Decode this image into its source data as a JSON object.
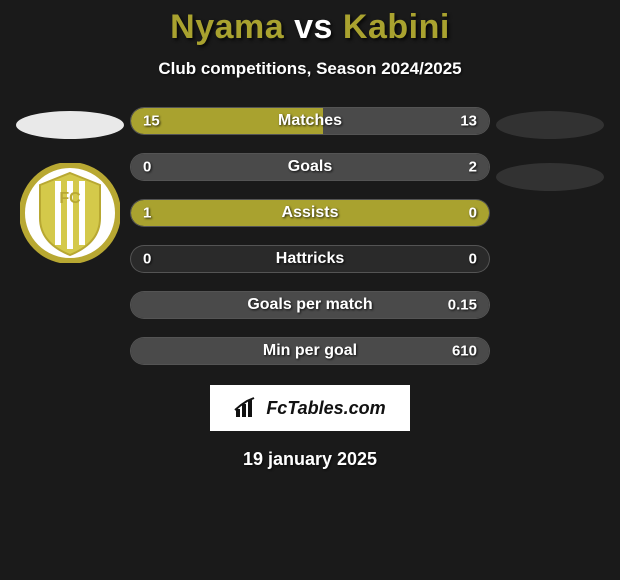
{
  "background_color": "#1a1a1a",
  "title": {
    "player1": "Nyama",
    "vs": "vs",
    "player2": "Kabini",
    "player1_color": "#a9a22f",
    "player2_color": "#a9a22f",
    "fontsize": 34
  },
  "subtitle": "Club competitions, Season 2024/2025",
  "colors": {
    "left_fill": "#a9a22f",
    "right_fill": "#4a4a4a",
    "bar_track": "#2a2a2a",
    "bar_border": "rgba(255,255,255,0.2)",
    "text": "#ffffff"
  },
  "bar_style": {
    "height": 28,
    "radius": 14,
    "label_fontsize": 16,
    "value_fontsize": 15,
    "gap": 18
  },
  "left_pill_color": "#e9e9e9",
  "right_pill_color": "#323232",
  "stats": [
    {
      "label": "Matches",
      "left_val": "15",
      "right_val": "13",
      "left_pct": 53.6,
      "right_pct": 46.4
    },
    {
      "label": "Goals",
      "left_val": "0",
      "right_val": "2",
      "left_pct": 0,
      "right_pct": 100
    },
    {
      "label": "Assists",
      "left_val": "1",
      "right_val": "0",
      "left_pct": 100,
      "right_pct": 0
    },
    {
      "label": "Hattricks",
      "left_val": "0",
      "right_val": "0",
      "left_pct": 0,
      "right_pct": 0
    },
    {
      "label": "Goals per match",
      "left_val": "",
      "right_val": "0.15",
      "left_pct": 0,
      "right_pct": 100
    },
    {
      "label": "Min per goal",
      "left_val": "",
      "right_val": "610",
      "left_pct": 0,
      "right_pct": 100
    }
  ],
  "club_logo_colors": {
    "outer": "#b8a832",
    "stripes": "#ffffff",
    "shield": "#d4c94a"
  },
  "footer": {
    "site_name": "FcTables.com",
    "date": "19 january 2025"
  }
}
